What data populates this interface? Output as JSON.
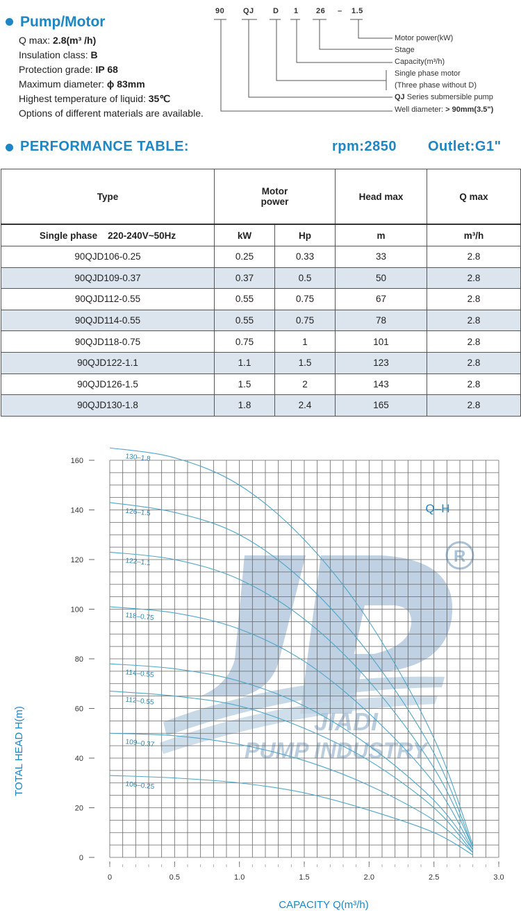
{
  "pump_motor": {
    "title": "Pump/Motor",
    "specs": [
      {
        "label": "Q max: ",
        "value": "2.8(m³ /h)"
      },
      {
        "label": "Insulation class: ",
        "value": "B"
      },
      {
        "label": "Protection grade: ",
        "value": "IP 68"
      },
      {
        "label": "Maximum diameter: ",
        "value": "ϕ 83mm"
      },
      {
        "label": "Highest temperature of liquid: ",
        "value": "35℃"
      },
      {
        "label": "Options of different materials are available.",
        "value": ""
      }
    ]
  },
  "model_code": {
    "tokens": [
      "90",
      "QJ",
      "D",
      "1",
      "26",
      "–",
      "1.5"
    ],
    "legend": [
      {
        "prefix": "",
        "text": "Motor power(kW)",
        "suffix": ""
      },
      {
        "prefix": "",
        "text": "Stage",
        "suffix": ""
      },
      {
        "prefix": "",
        "text": "Capacity(m³/h)",
        "suffix": ""
      },
      {
        "prefix": "",
        "text": "Single phase motor",
        "suffix": ""
      },
      {
        "prefix": "",
        "text": "(Three phase without D)",
        "suffix": ""
      },
      {
        "prefix": "QJ",
        "text": " Series submersible pump",
        "suffix": ""
      },
      {
        "prefix": "",
        "text": "Well diameter:  ",
        "suffix": "> 90mm(3.5\")"
      }
    ]
  },
  "performance": {
    "title": "PERFORMANCE TABLE:",
    "rpm": "rpm:2850",
    "outlet": "Outlet:G1\"",
    "headers": {
      "type": "Type",
      "motor_power_1": "Motor",
      "motor_power_2": "power",
      "head_max": "Head max",
      "q_max": "Q max"
    },
    "subheaders": {
      "phase": "Single phase",
      "voltage": "220-240V~50Hz",
      "kw": "kW",
      "hp": "Hp",
      "m": "m",
      "m3h": "m³/h"
    },
    "rows": [
      [
        "90QJD106-0.25",
        "0.25",
        "0.33",
        "33",
        "2.8"
      ],
      [
        "90QJD109-0.37",
        "0.37",
        "0.5",
        "50",
        "2.8"
      ],
      [
        "90QJD112-0.55",
        "0.55",
        "0.75",
        "67",
        "2.8"
      ],
      [
        "90QJD114-0.55",
        "0.55",
        "0.75",
        "78",
        "2.8"
      ],
      [
        "90QJD118-0.75",
        "0.75",
        "1",
        "101",
        "2.8"
      ],
      [
        "90QJD122-1.1",
        "1.1",
        "1.5",
        "123",
        "2.8"
      ],
      [
        "90QJD126-1.5",
        "1.5",
        "2",
        "143",
        "2.8"
      ],
      [
        "90QJD130-1.8",
        "1.8",
        "2.4",
        "165",
        "2.8"
      ]
    ]
  },
  "chart_data": {
    "type": "line",
    "title": "Q–H",
    "xlabel": "CAPACITY Q(m³/h)",
    "ylabel": "TOTAL HEAD H(m)",
    "xlim": [
      0,
      3.0
    ],
    "ylim": [
      0,
      160
    ],
    "xticks": [
      "0",
      "0.5",
      "1.0",
      "1.5",
      "2.0",
      "2.5",
      "3.0"
    ],
    "yticks": [
      "0",
      "20",
      "40",
      "60",
      "80",
      "100",
      "120",
      "140",
      "160"
    ],
    "grid": true,
    "watermark": {
      "top": "JIADI",
      "bottom": "PUMP INDUSTRY",
      "mark": "®"
    },
    "series": [
      {
        "name": "130–1.8",
        "points": [
          [
            0,
            165
          ],
          [
            0.5,
            161
          ],
          [
            1.0,
            150
          ],
          [
            1.5,
            128
          ],
          [
            2.0,
            95
          ],
          [
            2.5,
            48
          ],
          [
            2.8,
            5
          ]
        ]
      },
      {
        "name": "126–1.5",
        "points": [
          [
            0,
            143
          ],
          [
            0.5,
            139
          ],
          [
            1.0,
            130
          ],
          [
            1.5,
            111
          ],
          [
            2.0,
            82
          ],
          [
            2.5,
            42
          ],
          [
            2.8,
            4
          ]
        ]
      },
      {
        "name": "122–1.1",
        "points": [
          [
            0,
            123
          ],
          [
            0.5,
            120
          ],
          [
            1.0,
            112
          ],
          [
            1.5,
            96
          ],
          [
            2.0,
            71
          ],
          [
            2.5,
            36
          ],
          [
            2.8,
            4
          ]
        ]
      },
      {
        "name": "118–0.75",
        "points": [
          [
            0,
            101
          ],
          [
            0.5,
            98.5
          ],
          [
            1.0,
            92
          ],
          [
            1.5,
            79
          ],
          [
            2.0,
            58
          ],
          [
            2.5,
            30
          ],
          [
            2.8,
            3
          ]
        ]
      },
      {
        "name": "114–0.55",
        "points": [
          [
            0,
            78
          ],
          [
            0.5,
            76
          ],
          [
            1.0,
            71
          ],
          [
            1.5,
            61
          ],
          [
            2.0,
            45
          ],
          [
            2.5,
            23
          ],
          [
            2.8,
            3
          ]
        ]
      },
      {
        "name": "112–0.55",
        "points": [
          [
            0,
            67
          ],
          [
            0.5,
            65
          ],
          [
            1.0,
            61
          ],
          [
            1.5,
            52
          ],
          [
            2.0,
            39
          ],
          [
            2.5,
            20
          ],
          [
            2.8,
            2
          ]
        ]
      },
      {
        "name": "109–0.37",
        "points": [
          [
            0,
            50
          ],
          [
            0.5,
            49
          ],
          [
            1.0,
            45.5
          ],
          [
            1.5,
            39
          ],
          [
            2.0,
            29
          ],
          [
            2.5,
            15
          ],
          [
            2.8,
            2
          ]
        ]
      },
      {
        "name": "106–0.25",
        "points": [
          [
            0,
            33
          ],
          [
            0.5,
            32
          ],
          [
            1.0,
            30
          ],
          [
            1.5,
            26
          ],
          [
            2.0,
            19
          ],
          [
            2.5,
            10
          ],
          [
            2.8,
            1
          ]
        ]
      }
    ]
  }
}
